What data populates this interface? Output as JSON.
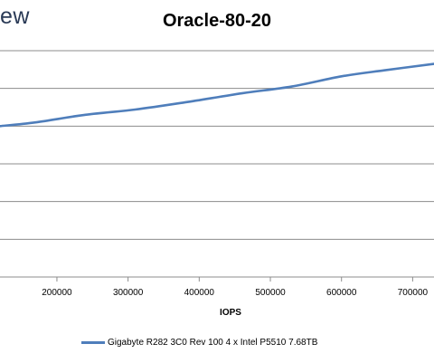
{
  "brand_text": "ew",
  "chart_data": {
    "type": "line",
    "title": "Oracle-80-20",
    "xlabel": "IOPS",
    "ylabel": "",
    "xlim": [
      120000,
      730000
    ],
    "ylim": [
      0,
      6
    ],
    "x_ticks": [
      200000,
      300000,
      400000,
      500000,
      600000,
      700000
    ],
    "grid": true,
    "legend_position": "bottom",
    "series": [
      {
        "name": "Gigabyte R282 3C0 Rev 100 4 x Intel P5510 7.68TB",
        "color": "#4f7ebb",
        "x": [
          120000,
          170000,
          240000,
          310000,
          380000,
          460000,
          530000,
          600000,
          660000,
          730000
        ],
        "y": [
          4.0,
          4.1,
          4.3,
          4.44,
          4.63,
          4.87,
          5.05,
          5.32,
          5.48,
          5.65
        ]
      }
    ]
  }
}
